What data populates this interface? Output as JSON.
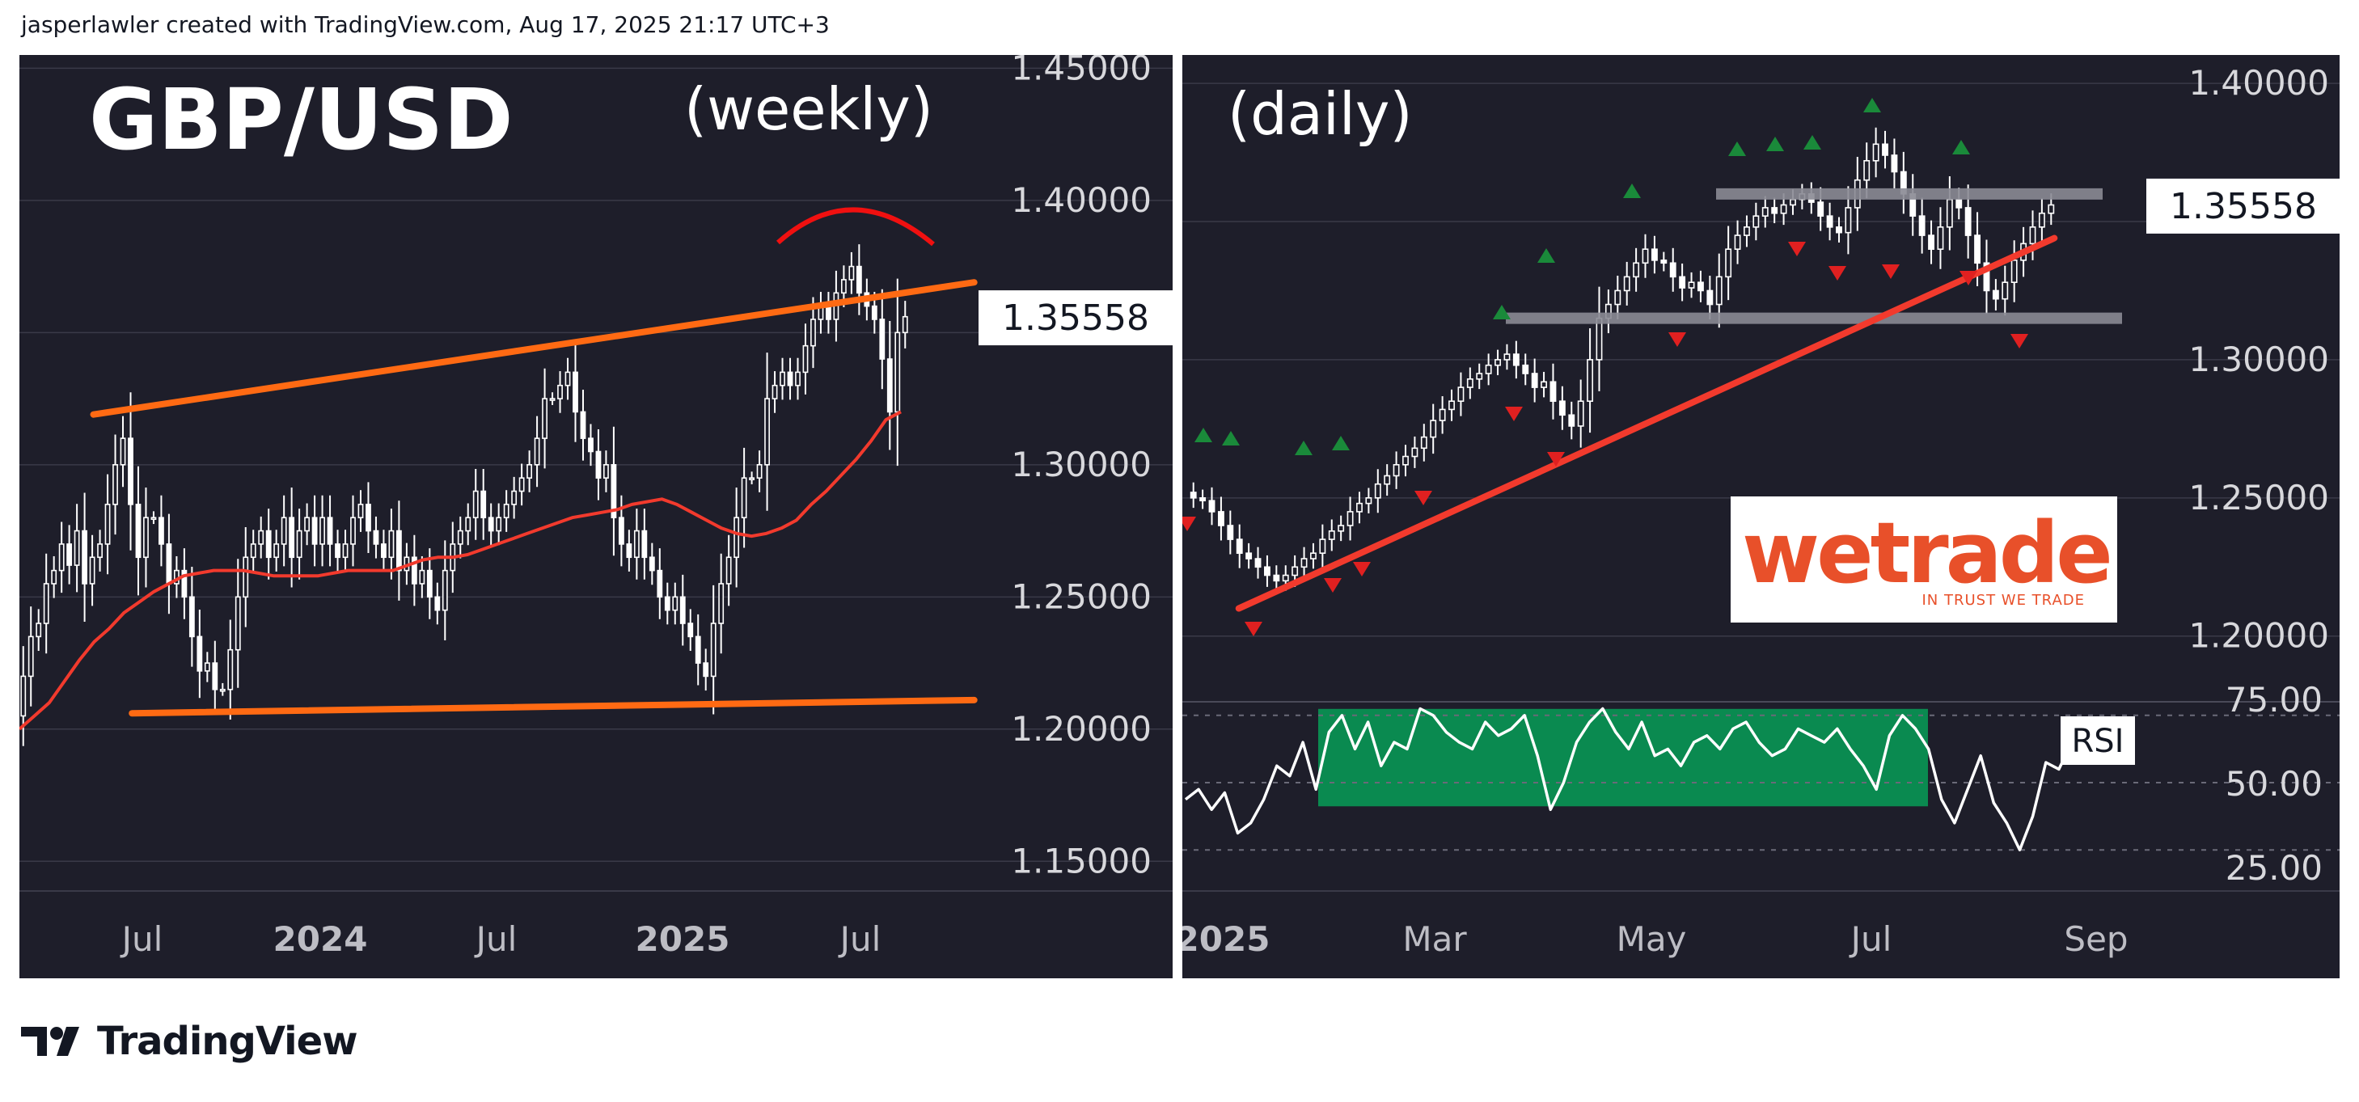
{
  "header": {
    "attribution": "jasperlawler created with TradingView.com, Aug 17, 2025 21:17 UTC+3"
  },
  "footer": {
    "brand": "TradingView"
  },
  "logo": {
    "name": "wetrade",
    "tagline": "IN TRUST WE TRADE",
    "color": "#e8502a"
  },
  "colors": {
    "background": "#1e1e2a",
    "candle": "#ffffff",
    "trendline": "#ff6a13",
    "ma": "#f23a2d",
    "red_line": "#f23a2d",
    "arc": "#f01010",
    "grey_level": "#8a8a94",
    "rsi_zone": "#0a8a50",
    "up_arrow": "#1a8a3a",
    "down_arrow": "#e02020",
    "price_label_bg": "#ffffff"
  },
  "chart_data": [
    {
      "type": "candlestick",
      "id": "weekly",
      "title": "GBP/USD",
      "subtitle": "(weekly)",
      "x_ticks": [
        "Jul",
        "2024",
        "Jul",
        "2025",
        "Jul"
      ],
      "y_ticks": [
        "1.45000",
        "1.40000",
        "1.35000",
        "1.30000",
        "1.25000",
        "1.20000",
        "1.15000"
      ],
      "ylim": [
        1.14,
        1.455
      ],
      "last_price": "1.35558",
      "series": [
        {
          "name": "close",
          "values": [
            1.22,
            1.235,
            1.24,
            1.255,
            1.26,
            1.27,
            1.262,
            1.275,
            1.255,
            1.265,
            1.27,
            1.285,
            1.3,
            1.31,
            1.285,
            1.265,
            1.28,
            1.28,
            1.27,
            1.255,
            1.26,
            1.25,
            1.235,
            1.222,
            1.225,
            1.215,
            1.215,
            1.23,
            1.25,
            1.265,
            1.27,
            1.275,
            1.265,
            1.27,
            1.28,
            1.265,
            1.275,
            1.28,
            1.27,
            1.28,
            1.27,
            1.265,
            1.27,
            1.28,
            1.285,
            1.275,
            1.27,
            1.265,
            1.275,
            1.26,
            1.265,
            1.255,
            1.26,
            1.25,
            1.245,
            1.26,
            1.27,
            1.275,
            1.28,
            1.29,
            1.28,
            1.275,
            1.28,
            1.285,
            1.29,
            1.295,
            1.3,
            1.31,
            1.325,
            1.325,
            1.33,
            1.335,
            1.32,
            1.31,
            1.305,
            1.295,
            1.3,
            1.28,
            1.27,
            1.265,
            1.275,
            1.265,
            1.26,
            1.25,
            1.245,
            1.25,
            1.24,
            1.235,
            1.225,
            1.22,
            1.24,
            1.255,
            1.265,
            1.28,
            1.295,
            1.295,
            1.3,
            1.325,
            1.33,
            1.335,
            1.33,
            1.335,
            1.345,
            1.355,
            1.36,
            1.355,
            1.365,
            1.37,
            1.375,
            1.365,
            1.36,
            1.355,
            1.34,
            1.32,
            1.35,
            1.356
          ]
        },
        {
          "name": "moving_average",
          "values": [
            1.2,
            1.205,
            1.21,
            1.218,
            1.226,
            1.233,
            1.238,
            1.244,
            1.248,
            1.252,
            1.255,
            1.258,
            1.259,
            1.26,
            1.26,
            1.26,
            1.259,
            1.258,
            1.258,
            1.258,
            1.258,
            1.259,
            1.26,
            1.26,
            1.26,
            1.26,
            1.262,
            1.264,
            1.265,
            1.265,
            1.266,
            1.268,
            1.27,
            1.272,
            1.274,
            1.276,
            1.278,
            1.28,
            1.281,
            1.282,
            1.283,
            1.285,
            1.286,
            1.287,
            1.285,
            1.282,
            1.279,
            1.276,
            1.274,
            1.273,
            1.274,
            1.276,
            1.279,
            1.285,
            1.29,
            1.296,
            1.302,
            1.309,
            1.317,
            1.32
          ]
        }
      ],
      "annotations": [
        {
          "type": "trendline",
          "from": [
            0.06,
            1.319
          ],
          "to": [
            0.915,
            1.369
          ]
        },
        {
          "type": "trendline",
          "from": [
            0.1,
            1.206
          ],
          "to": [
            0.915,
            1.211
          ]
        },
        {
          "type": "arc",
          "note": "top near 1.38"
        }
      ]
    },
    {
      "type": "candlestick",
      "id": "daily",
      "subtitle": "(daily)",
      "x_ticks": [
        "2025",
        "Mar",
        "May",
        "Jul",
        "Sep"
      ],
      "y_ticks": [
        "1.40000",
        "1.35000",
        "1.30000",
        "1.25000",
        "1.20000"
      ],
      "ylim": [
        1.185,
        1.405
      ],
      "last_price": "1.35558",
      "series": [
        {
          "name": "close",
          "values": [
            1.25,
            1.249,
            1.245,
            1.24,
            1.235,
            1.23,
            1.228,
            1.225,
            1.222,
            1.22,
            1.222,
            1.225,
            1.228,
            1.23,
            1.235,
            1.238,
            1.24,
            1.245,
            1.248,
            1.25,
            1.255,
            1.258,
            1.262,
            1.265,
            1.268,
            1.272,
            1.278,
            1.282,
            1.285,
            1.29,
            1.293,
            1.295,
            1.298,
            1.3,
            1.302,
            1.298,
            1.295,
            1.29,
            1.292,
            1.285,
            1.28,
            1.276,
            1.285,
            1.3,
            1.315,
            1.32,
            1.325,
            1.33,
            1.335,
            1.34,
            1.336,
            1.335,
            1.33,
            1.326,
            1.328,
            1.325,
            1.32,
            1.33,
            1.34,
            1.345,
            1.348,
            1.352,
            1.355,
            1.353,
            1.356,
            1.358,
            1.36,
            1.357,
            1.352,
            1.348,
            1.346,
            1.355,
            1.365,
            1.372,
            1.378,
            1.374,
            1.368,
            1.36,
            1.352,
            1.345,
            1.34,
            1.348,
            1.358,
            1.355,
            1.345,
            1.335,
            1.325,
            1.322,
            1.328,
            1.336,
            1.342,
            1.348,
            1.353,
            1.356
          ]
        },
        {
          "name": "rsi",
          "values": [
            45,
            48,
            42,
            47,
            35,
            38,
            45,
            55,
            52,
            62,
            48,
            65,
            70,
            60,
            68,
            55,
            62,
            60,
            72,
            70,
            65,
            62,
            60,
            68,
            64,
            66,
            70,
            58,
            42,
            50,
            62,
            68,
            72,
            65,
            60,
            68,
            58,
            60,
            55,
            62,
            64,
            60,
            66,
            68,
            62,
            58,
            60,
            66,
            64,
            62,
            66,
            60,
            55,
            48,
            64,
            70,
            66,
            60,
            45,
            38,
            48,
            58,
            44,
            38,
            30,
            40,
            56,
            54,
            62
          ]
        }
      ],
      "annotations": [
        {
          "type": "horizontal_level",
          "value": 1.36,
          "color": "grey"
        },
        {
          "type": "horizontal_level",
          "value": 1.315,
          "color": "grey"
        },
        {
          "type": "trendline",
          "from": [
            0.03,
            1.21
          ],
          "to": [
            0.71,
            1.344
          ]
        },
        {
          "type": "rsi_zone",
          "range": [
            42,
            70
          ]
        }
      ],
      "rsi": {
        "label": "RSI",
        "y_ticks": [
          "75.00",
          "50.00",
          "25.00"
        ],
        "ylim": [
          25,
          75
        ]
      }
    }
  ]
}
